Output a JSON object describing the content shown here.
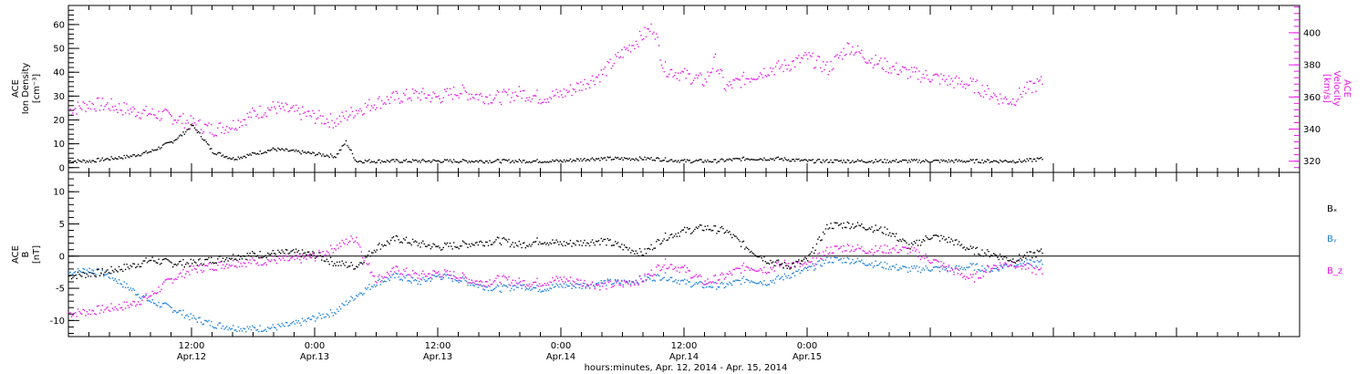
{
  "colors": {
    "black": "#000000",
    "magenta": "#e815e8",
    "blue": "#1a7fdc"
  },
  "chart_data": [
    {
      "type": "scatter",
      "panel": "top",
      "left_axis": {
        "label_lines": [
          "ACE",
          "Ion Density",
          "[cm⁻³]"
        ],
        "ylim": [
          -2,
          68
        ],
        "ticks": [
          0,
          10,
          20,
          30,
          40,
          50,
          60
        ]
      },
      "right_axis": {
        "label_lines": [
          "ACE",
          "Velocity",
          "[km/s]"
        ],
        "ylim": [
          313,
          417
        ],
        "ticks": [
          320,
          340,
          360,
          380,
          400
        ]
      },
      "series": [
        {
          "axis": "left",
          "color": "#000000",
          "points": [
            [
              0,
              3
            ],
            [
              2,
              3
            ],
            [
              4,
              4
            ],
            [
              6,
              5
            ],
            [
              8,
              7
            ],
            [
              10,
              11
            ],
            [
              11,
              14
            ],
            [
              12,
              18
            ],
            [
              13,
              13
            ],
            [
              14,
              7
            ],
            [
              16,
              4
            ],
            [
              18,
              6
            ],
            [
              20,
              8
            ],
            [
              22,
              7
            ],
            [
              24,
              6
            ],
            [
              26,
              5
            ],
            [
              27,
              11
            ],
            [
              28,
              3
            ],
            [
              30,
              3
            ],
            [
              33,
              3
            ],
            [
              36,
              3
            ],
            [
              39,
              3
            ],
            [
              42,
              3
            ],
            [
              45,
              3
            ],
            [
              48,
              3
            ],
            [
              51,
              4
            ],
            [
              54,
              4
            ],
            [
              57,
              4
            ],
            [
              60,
              3
            ],
            [
              63,
              3
            ],
            [
              66,
              4
            ],
            [
              69,
              4
            ],
            [
              72,
              3
            ],
            [
              75,
              3
            ],
            [
              78,
              3
            ],
            [
              81,
              3
            ],
            [
              84,
              3
            ],
            [
              87,
              3
            ],
            [
              90,
              3
            ],
            [
              93,
              3
            ],
            [
              95,
              4
            ]
          ]
        },
        {
          "axis": "right",
          "color": "#e815e8",
          "points": [
            [
              0,
              352
            ],
            [
              2,
              356
            ],
            [
              4,
              355
            ],
            [
              6,
              352
            ],
            [
              8,
              350
            ],
            [
              10,
              348
            ],
            [
              12,
              344
            ],
            [
              14,
              340
            ],
            [
              16,
              343
            ],
            [
              18,
              350
            ],
            [
              20,
              354
            ],
            [
              22,
              351
            ],
            [
              24,
              348
            ],
            [
              26,
              345
            ],
            [
              28,
              352
            ],
            [
              30,
              357
            ],
            [
              32,
              360
            ],
            [
              34,
              362
            ],
            [
              36,
              360
            ],
            [
              38,
              364
            ],
            [
              40,
              361
            ],
            [
              42,
              360
            ],
            [
              44,
              363
            ],
            [
              46,
              360
            ],
            [
              48,
              362
            ],
            [
              50,
              368
            ],
            [
              52,
              375
            ],
            [
              54,
              388
            ],
            [
              56,
              399
            ],
            [
              57,
              404
            ],
            [
              58,
              378
            ],
            [
              60,
              374
            ],
            [
              62,
              370
            ],
            [
              63,
              383
            ],
            [
              64,
              366
            ],
            [
              66,
              372
            ],
            [
              68,
              377
            ],
            [
              70,
              380
            ],
            [
              72,
              385
            ],
            [
              74,
              378
            ],
            [
              76,
              392
            ],
            [
              78,
              384
            ],
            [
              80,
              379
            ],
            [
              82,
              375
            ],
            [
              84,
              373
            ],
            [
              86,
              370
            ],
            [
              88,
              368
            ],
            [
              90,
              362
            ],
            [
              91,
              359
            ],
            [
              92,
              358
            ],
            [
              93,
              364
            ],
            [
              95,
              370
            ]
          ]
        }
      ]
    },
    {
      "type": "scatter",
      "panel": "bottom",
      "left_axis": {
        "label_lines": [
          "ACE",
          "B",
          "[nT]"
        ],
        "ylim": [
          -12.5,
          13
        ],
        "ticks": [
          -10,
          -5,
          0,
          5,
          10
        ]
      },
      "legend": [
        "Bₓ",
        "Bᵧ",
        "B_z"
      ],
      "series": [
        {
          "name": "Bₓ",
          "color": "#000000",
          "points": [
            [
              0,
              -3
            ],
            [
              3,
              -2.5
            ],
            [
              6,
              -1.5
            ],
            [
              8,
              -0.5
            ],
            [
              10,
              -1
            ],
            [
              12,
              -1
            ],
            [
              14,
              -0.5
            ],
            [
              16,
              0
            ],
            [
              18,
              0.3
            ],
            [
              20,
              0.5
            ],
            [
              22,
              0.6
            ],
            [
              24,
              0.3
            ],
            [
              26,
              -1
            ],
            [
              28,
              -1.5
            ],
            [
              30,
              1.5
            ],
            [
              32,
              2.8
            ],
            [
              34,
              2
            ],
            [
              36,
              1.5
            ],
            [
              38,
              1.8
            ],
            [
              40,
              2.2
            ],
            [
              42,
              2.5
            ],
            [
              44,
              1.8
            ],
            [
              46,
              2.5
            ],
            [
              48,
              2
            ],
            [
              50,
              2.2
            ],
            [
              52,
              2.5
            ],
            [
              54,
              1.5
            ],
            [
              56,
              0.5
            ],
            [
              58,
              3
            ],
            [
              60,
              4
            ],
            [
              62,
              4.5
            ],
            [
              64,
              4
            ],
            [
              66,
              1.5
            ],
            [
              68,
              -0.5
            ],
            [
              70,
              -1.5
            ],
            [
              72,
              -0.5
            ],
            [
              74,
              4.8
            ],
            [
              76,
              5
            ],
            [
              78,
              4.6
            ],
            [
              80,
              3.8
            ],
            [
              82,
              1.5
            ],
            [
              84,
              3.2
            ],
            [
              86,
              2.5
            ],
            [
              88,
              1
            ],
            [
              90,
              0.4
            ],
            [
              92,
              -0.5
            ],
            [
              95,
              0.8
            ]
          ]
        },
        {
          "name": "Bᵧ",
          "color": "#1a7fdc",
          "points": [
            [
              0,
              -2.5
            ],
            [
              2,
              -2
            ],
            [
              4,
              -3
            ],
            [
              6,
              -5
            ],
            [
              8,
              -7
            ],
            [
              10,
              -8
            ],
            [
              12,
              -9.5
            ],
            [
              14,
              -10.5
            ],
            [
              16,
              -11
            ],
            [
              18,
              -11.2
            ],
            [
              20,
              -11
            ],
            [
              22,
              -10.5
            ],
            [
              24,
              -9.5
            ],
            [
              26,
              -8.5
            ],
            [
              28,
              -6
            ],
            [
              30,
              -4
            ],
            [
              32,
              -3
            ],
            [
              34,
              -4
            ],
            [
              36,
              -3
            ],
            [
              38,
              -3.5
            ],
            [
              40,
              -4.5
            ],
            [
              42,
              -5
            ],
            [
              44,
              -4.5
            ],
            [
              46,
              -5
            ],
            [
              48,
              -4.5
            ],
            [
              50,
              -4.5
            ],
            [
              52,
              -4
            ],
            [
              54,
              -4
            ],
            [
              56,
              -3.5
            ],
            [
              58,
              -3
            ],
            [
              60,
              -4
            ],
            [
              62,
              -4.5
            ],
            [
              64,
              -4.5
            ],
            [
              66,
              -3.5
            ],
            [
              68,
              -4
            ],
            [
              70,
              -3
            ],
            [
              72,
              -2
            ],
            [
              74,
              -0.5
            ],
            [
              76,
              -0.5
            ],
            [
              78,
              -1
            ],
            [
              80,
              -1.5
            ],
            [
              82,
              -2
            ],
            [
              84,
              -1.8
            ],
            [
              86,
              -2
            ],
            [
              88,
              -1.5
            ],
            [
              90,
              -2
            ],
            [
              92,
              -1
            ],
            [
              95,
              -1
            ]
          ]
        },
        {
          "name": "B_z",
          "color": "#e815e8",
          "points": [
            [
              0,
              -8.8
            ],
            [
              2,
              -8.5
            ],
            [
              4,
              -8
            ],
            [
              6,
              -7.5
            ],
            [
              8,
              -6
            ],
            [
              10,
              -3.5
            ],
            [
              12,
              -2
            ],
            [
              14,
              -1.5
            ],
            [
              16,
              -1
            ],
            [
              18,
              -0.8
            ],
            [
              20,
              -0.5
            ],
            [
              22,
              -0.5
            ],
            [
              24,
              0
            ],
            [
              26,
              1.5
            ],
            [
              28,
              3
            ],
            [
              29,
              -1
            ],
            [
              30,
              -3.5
            ],
            [
              32,
              -2
            ],
            [
              34,
              -3
            ],
            [
              36,
              -2.5
            ],
            [
              38,
              -3
            ],
            [
              40,
              -4
            ],
            [
              42,
              -3.5
            ],
            [
              44,
              -4
            ],
            [
              46,
              -4
            ],
            [
              48,
              -3.5
            ],
            [
              50,
              -4
            ],
            [
              52,
              -4.5
            ],
            [
              54,
              -4.2
            ],
            [
              56,
              -3.5
            ],
            [
              58,
              -1
            ],
            [
              60,
              -2
            ],
            [
              62,
              -4
            ],
            [
              64,
              -3
            ],
            [
              66,
              -1.5
            ],
            [
              68,
              -2
            ],
            [
              70,
              -1
            ],
            [
              72,
              -1.5
            ],
            [
              74,
              1
            ],
            [
              76,
              1.5
            ],
            [
              78,
              1
            ],
            [
              80,
              1.2
            ],
            [
              82,
              1
            ],
            [
              84,
              -0.5
            ],
            [
              86,
              -2
            ],
            [
              88,
              -3.5
            ],
            [
              90,
              -1.5
            ],
            [
              92,
              -1
            ],
            [
              95,
              -2.5
            ]
          ]
        }
      ]
    }
  ],
  "time_axis": {
    "hours_span": 120,
    "ticks": [
      {
        "hour": 12,
        "time": "12:00",
        "date": "Apr.12"
      },
      {
        "hour": 24,
        "time": "0:00",
        "date": "Apr.13"
      },
      {
        "hour": 36,
        "time": "12:00",
        "date": "Apr.13"
      },
      {
        "hour": 48,
        "time": "0:00",
        "date": "Apr.14"
      },
      {
        "hour": 60,
        "time": "12:00",
        "date": "Apr.14"
      },
      {
        "hour": 72,
        "time": "0:00",
        "date": "Apr.15"
      }
    ],
    "xlabel": "hours:minutes, Apr. 12, 2014 - Apr. 15, 2014"
  }
}
